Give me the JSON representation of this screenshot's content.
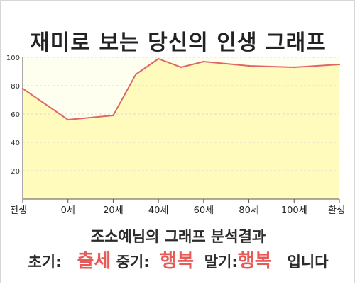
{
  "page": {
    "title": "재미로 보는 당신의 인생 그래프",
    "caption": "조소예님의 그래프 분석결과",
    "result": {
      "early_label": "초기:",
      "early_value": "출세",
      "mid_label": "중기:",
      "mid_value": "행복",
      "late_label": "말기:",
      "late_value": "행복",
      "suffix": "입니다"
    }
  },
  "colors": {
    "line": "#e06666",
    "fill": "#fffbbd",
    "plot_bg": "#fffff0",
    "grid": "#d9d9d9",
    "axis": "#555555",
    "highlight": "#e65a57"
  },
  "chart_data": {
    "type": "area",
    "title": "재미로 보는 당신의 인생 그래프",
    "xlabel": "",
    "ylabel": "",
    "x_tick_labels": [
      "전생",
      "0세",
      "20세",
      "40세",
      "60세",
      "80세",
      "100세",
      "환생"
    ],
    "y_ticks": [
      20,
      40,
      60,
      80,
      100
    ],
    "ylim": [
      0,
      100
    ],
    "grid": "horizontal, dashed",
    "legend": "none",
    "x": [
      0,
      1,
      2,
      2.5,
      3,
      3.5,
      4,
      5,
      6,
      7
    ],
    "values": [
      78,
      56,
      59,
      88,
      99,
      93,
      97,
      94,
      93,
      95
    ]
  }
}
